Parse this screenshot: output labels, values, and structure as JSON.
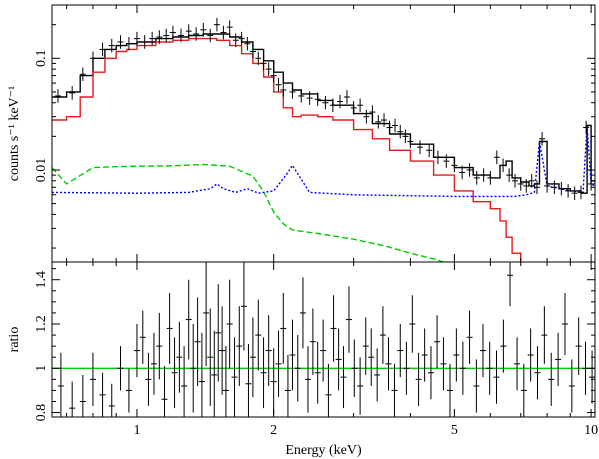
{
  "chart_data": [
    {
      "panel": "top",
      "type": "line",
      "x_scale": "log",
      "y_scale": "log",
      "xlim": [
        0.65,
        10.2
      ],
      "ylim": [
        0.0015,
        0.3
      ],
      "xlabel": "",
      "ylabel": "counts s⁻¹ keV⁻¹",
      "ytick_labels": [
        "0.01",
        "0.1"
      ],
      "ytick_values": [
        0.01,
        0.1
      ],
      "grid": false,
      "colors": {
        "data": "#000000",
        "total_model": "#000000",
        "red_component": "#e41a1c",
        "green_component": "#00cc00",
        "blue_component": "#0000ff"
      },
      "series": [
        {
          "style": "step",
          "color": "#000000",
          "x": [
            0.65,
            0.7,
            0.75,
            0.8,
            0.85,
            0.9,
            0.95,
            1.0,
            1.1,
            1.2,
            1.3,
            1.4,
            1.5,
            1.6,
            1.7,
            1.8,
            1.9,
            2.0,
            2.1,
            2.2,
            2.3,
            2.5,
            2.7,
            3.0,
            3.3,
            3.6,
            4.0,
            4.5,
            5.0,
            5.5,
            6.0,
            6.3,
            6.5,
            6.7,
            7.0,
            7.3,
            7.5,
            7.7,
            8.0,
            8.5,
            9.0,
            9.5,
            9.8,
            10.0,
            10.2
          ],
          "y": [
            0.045,
            0.05,
            0.07,
            0.1,
            0.12,
            0.13,
            0.135,
            0.14,
            0.15,
            0.155,
            0.16,
            0.165,
            0.165,
            0.155,
            0.14,
            0.12,
            0.095,
            0.075,
            0.06,
            0.052,
            0.048,
            0.042,
            0.038,
            0.032,
            0.026,
            0.021,
            0.017,
            0.013,
            0.0105,
            0.009,
            0.0085,
            0.011,
            0.012,
            0.0085,
            0.0078,
            0.0072,
            0.0075,
            0.018,
            0.0075,
            0.0068,
            0.0065,
            0.0062,
            0.025,
            0.008,
            0.0075
          ]
        },
        {
          "style": "step",
          "color": "#e41a1c",
          "x": [
            0.65,
            0.7,
            0.75,
            0.8,
            0.85,
            0.9,
            0.95,
            1.0,
            1.1,
            1.2,
            1.3,
            1.4,
            1.5,
            1.6,
            1.7,
            1.8,
            1.9,
            2.0,
            2.1,
            2.2,
            2.3,
            2.5,
            2.7,
            3.0,
            3.3,
            3.6,
            4.0,
            4.5,
            5.0,
            5.5,
            6.0,
            6.3,
            6.5,
            6.7,
            7.0,
            7.3
          ],
          "y": [
            0.028,
            0.03,
            0.045,
            0.075,
            0.1,
            0.115,
            0.12,
            0.13,
            0.14,
            0.145,
            0.15,
            0.15,
            0.145,
            0.13,
            0.11,
            0.09,
            0.068,
            0.05,
            0.036,
            0.03,
            0.031,
            0.03,
            0.028,
            0.023,
            0.019,
            0.015,
            0.012,
            0.009,
            0.0065,
            0.0052,
            0.0045,
            0.0035,
            0.0025,
            0.0018,
            0.0014,
            0.0012
          ]
        },
        {
          "style": "dashed",
          "color": "#00cc00",
          "x": [
            0.65,
            0.7,
            0.8,
            0.9,
            1.0,
            1.2,
            1.4,
            1.6,
            1.8,
            1.9,
            2.0,
            2.1,
            2.2,
            2.5,
            3.0,
            3.5,
            4.0,
            4.5,
            5.0
          ],
          "y": [
            0.0105,
            0.0075,
            0.0105,
            0.0107,
            0.0108,
            0.0109,
            0.0112,
            0.0108,
            0.0088,
            0.0064,
            0.0042,
            0.0033,
            0.0029,
            0.0027,
            0.0024,
            0.0021,
            0.0018,
            0.0016,
            0.0014
          ]
        },
        {
          "style": "dotted",
          "color": "#0000ff",
          "x": [
            0.65,
            1.0,
            1.3,
            1.45,
            1.5,
            1.55,
            1.65,
            1.75,
            1.85,
            2.0,
            2.15,
            2.2,
            2.25,
            2.4,
            3.0,
            5.0,
            6.2,
            6.5,
            6.8,
            7.2,
            7.5,
            7.7,
            8.0,
            9.0,
            9.6,
            9.8,
            10.0,
            10.2
          ],
          "y": [
            0.0063,
            0.0062,
            0.0063,
            0.0068,
            0.0075,
            0.0068,
            0.0063,
            0.0068,
            0.0062,
            0.0065,
            0.0095,
            0.011,
            0.0095,
            0.0063,
            0.006,
            0.0058,
            0.0058,
            0.0058,
            0.0058,
            0.006,
            0.0063,
            0.018,
            0.0072,
            0.0065,
            0.0063,
            0.025,
            0.0075,
            0.0072
          ]
        }
      ],
      "data_points": {
        "style": "crosses",
        "color": "#000000",
        "x": [
          0.67,
          0.72,
          0.76,
          0.8,
          0.84,
          0.88,
          0.92,
          0.96,
          1.0,
          1.04,
          1.08,
          1.12,
          1.16,
          1.2,
          1.25,
          1.3,
          1.35,
          1.4,
          1.45,
          1.5,
          1.55,
          1.6,
          1.65,
          1.7,
          1.75,
          1.8,
          1.85,
          1.9,
          1.95,
          2.0,
          2.05,
          2.1,
          2.2,
          2.3,
          2.4,
          2.5,
          2.6,
          2.7,
          2.8,
          2.9,
          3.0,
          3.1,
          3.2,
          3.3,
          3.4,
          3.5,
          3.6,
          3.7,
          3.8,
          3.9,
          4.0,
          4.2,
          4.4,
          4.6,
          4.8,
          5.0,
          5.2,
          5.4,
          5.6,
          5.8,
          6.0,
          6.2,
          6.4,
          6.6,
          6.8,
          7.0,
          7.2,
          7.4,
          7.6,
          7.8,
          8.0,
          8.3,
          8.6,
          8.9,
          9.2,
          9.5,
          9.75,
          10.0
        ],
        "y": [
          0.046,
          0.049,
          0.072,
          0.1,
          0.12,
          0.13,
          0.14,
          0.135,
          0.15,
          0.14,
          0.15,
          0.155,
          0.16,
          0.17,
          0.16,
          0.175,
          0.165,
          0.18,
          0.16,
          0.2,
          0.17,
          0.19,
          0.145,
          0.15,
          0.135,
          0.115,
          0.1,
          0.09,
          0.08,
          0.07,
          0.058,
          0.052,
          0.05,
          0.046,
          0.044,
          0.043,
          0.04,
          0.038,
          0.041,
          0.045,
          0.036,
          0.038,
          0.03,
          0.033,
          0.027,
          0.028,
          0.024,
          0.025,
          0.022,
          0.02,
          0.018,
          0.016,
          0.015,
          0.013,
          0.012,
          0.011,
          0.0095,
          0.01,
          0.0085,
          0.009,
          0.0085,
          0.013,
          0.011,
          0.009,
          0.008,
          0.0075,
          0.0072,
          0.008,
          0.007,
          0.019,
          0.0072,
          0.007,
          0.0068,
          0.0065,
          0.0062,
          0.0063,
          0.024,
          0.0075
        ],
        "yerr_factor": 1.15
      }
    },
    {
      "panel": "bottom",
      "type": "scatter",
      "x_scale": "log",
      "xlim": [
        0.65,
        10.2
      ],
      "ylim": [
        0.78,
        1.48
      ],
      "xlabel": "Energy (keV)",
      "ylabel": "ratio",
      "xtick_labels": [
        "1",
        "2",
        "5",
        "10"
      ],
      "xtick_values": [
        1,
        2,
        5,
        10
      ],
      "ytick_labels": [
        "0.8",
        "1",
        "1.2",
        "1.4"
      ],
      "ytick_values": [
        0.8,
        1.0,
        1.2,
        1.4
      ],
      "reference_line": {
        "y": 1.0,
        "color": "#00cc00"
      },
      "grid": false,
      "points": {
        "x": [
          0.68,
          0.72,
          0.76,
          0.8,
          0.84,
          0.88,
          0.92,
          0.96,
          1.0,
          1.03,
          1.06,
          1.09,
          1.12,
          1.15,
          1.18,
          1.21,
          1.24,
          1.27,
          1.3,
          1.33,
          1.36,
          1.39,
          1.42,
          1.45,
          1.48,
          1.51,
          1.54,
          1.57,
          1.6,
          1.64,
          1.68,
          1.72,
          1.76,
          1.8,
          1.85,
          1.9,
          1.95,
          2.0,
          2.05,
          2.1,
          2.15,
          2.2,
          2.26,
          2.32,
          2.38,
          2.44,
          2.5,
          2.57,
          2.64,
          2.71,
          2.78,
          2.85,
          2.93,
          3.01,
          3.1,
          3.19,
          3.28,
          3.38,
          3.48,
          3.58,
          3.69,
          3.8,
          3.92,
          4.04,
          4.17,
          4.3,
          4.44,
          4.58,
          4.73,
          4.89,
          5.05,
          5.22,
          5.4,
          5.59,
          5.78,
          5.98,
          6.19,
          6.41,
          6.63,
          6.87,
          7.11,
          7.36,
          7.62,
          7.89,
          8.17,
          8.46,
          8.76,
          9.07,
          9.39,
          9.72,
          10.05
        ],
        "y": [
          0.92,
          0.82,
          0.85,
          0.95,
          0.88,
          0.83,
          1.0,
          0.9,
          1.08,
          1.14,
          0.95,
          1.02,
          1.1,
          0.86,
          1.18,
          0.98,
          1.05,
          0.92,
          1.22,
          1.0,
          1.12,
          0.94,
          1.25,
          1.05,
          0.97,
          1.16,
          1.08,
          0.9,
          1.2,
          0.96,
          1.1,
          1.28,
          0.93,
          1.05,
          1.15,
          0.98,
          1.08,
          0.94,
          1.02,
          1.18,
          0.9,
          1.06,
          1.0,
          1.25,
          0.95,
          1.12,
          0.98,
          1.08,
          0.88,
          1.18,
          1.04,
          0.96,
          1.22,
          1.0,
          0.92,
          1.1,
          1.05,
          0.97,
          1.15,
          1.02,
          0.9,
          1.08,
          1.0,
          1.2,
          0.95,
          1.06,
          0.98,
          1.12,
          1.02,
          0.9,
          1.06,
          1.0,
          1.14,
          0.92,
          1.08,
          1.0,
          0.96,
          1.1,
          1.42,
          1.02,
          0.9,
          1.06,
          0.98,
          1.15,
          0.95,
          1.04,
          1.2,
          0.92,
          1.1,
          1.0,
          0.96
        ],
        "yerr": [
          0.15,
          0.12,
          0.12,
          0.12,
          0.1,
          0.1,
          0.1,
          0.1,
          0.12,
          0.12,
          0.12,
          0.14,
          0.15,
          0.15,
          0.16,
          0.16,
          0.16,
          0.18,
          0.18,
          0.2,
          0.2,
          0.22,
          0.24,
          0.22,
          0.2,
          0.22,
          0.2,
          0.2,
          0.2,
          0.18,
          0.18,
          0.2,
          0.18,
          0.18,
          0.16,
          0.16,
          0.16,
          0.15,
          0.15,
          0.16,
          0.16,
          0.16,
          0.15,
          0.16,
          0.15,
          0.15,
          0.14,
          0.14,
          0.14,
          0.15,
          0.14,
          0.14,
          0.15,
          0.13,
          0.13,
          0.13,
          0.13,
          0.12,
          0.13,
          0.12,
          0.12,
          0.12,
          0.12,
          0.13,
          0.12,
          0.12,
          0.12,
          0.12,
          0.12,
          0.12,
          0.12,
          0.12,
          0.12,
          0.12,
          0.12,
          0.12,
          0.12,
          0.12,
          0.14,
          0.12,
          0.12,
          0.12,
          0.12,
          0.13,
          0.12,
          0.12,
          0.14,
          0.12,
          0.13,
          0.12,
          0.12
        ]
      }
    }
  ]
}
